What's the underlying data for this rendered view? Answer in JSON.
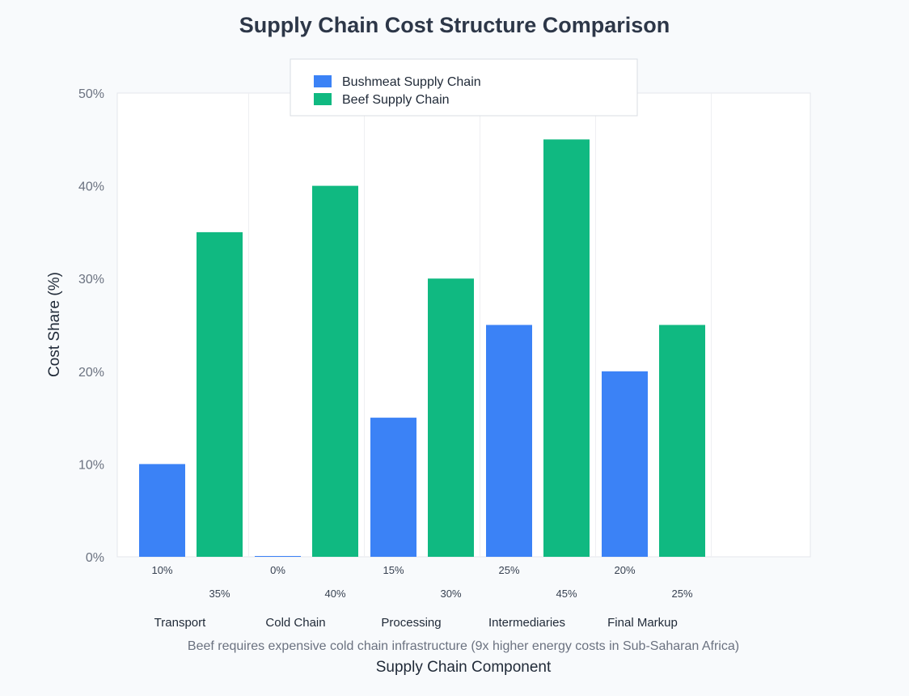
{
  "chart_data": {
    "type": "bar",
    "title": "Supply Chain Cost Structure Comparison",
    "xlabel": "Supply Chain Component",
    "ylabel": "Cost Share (%)",
    "categories": [
      "Transport",
      "Cold Chain",
      "Processing",
      "Intermediaries",
      "Final Markup"
    ],
    "series": [
      {
        "name": "Bushmeat Supply Chain",
        "values": [
          10,
          0,
          15,
          25,
          20
        ],
        "labels": [
          "10%",
          "0%",
          "15%",
          "25%",
          "20%"
        ],
        "color": "#3b82f6"
      },
      {
        "name": "Beef Supply Chain",
        "values": [
          35,
          40,
          30,
          45,
          25
        ],
        "labels": [
          "35%",
          "40%",
          "30%",
          "45%",
          "25%"
        ],
        "color": "#10b981"
      }
    ],
    "ylim": [
      0,
      50
    ],
    "yticks": [
      0,
      10,
      20,
      30,
      40,
      50
    ],
    "ytick_labels": [
      "0%",
      "10%",
      "20%",
      "30%",
      "40%",
      "50%"
    ],
    "annotation": "Beef requires expensive cold chain infrastructure (9x higher energy costs in Sub-Saharan Africa)",
    "legend": "top-center",
    "grid": true
  }
}
